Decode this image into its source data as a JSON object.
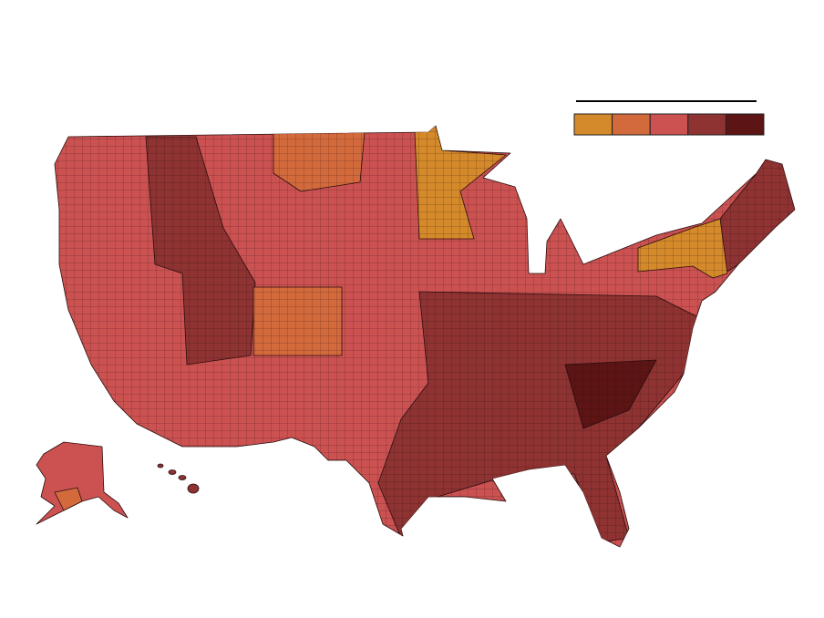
{
  "legend": {
    "colors": [
      "#d4892a",
      "#d36a3c",
      "#cc5252",
      "#8e3232",
      "#5c1414"
    ]
  }
}
